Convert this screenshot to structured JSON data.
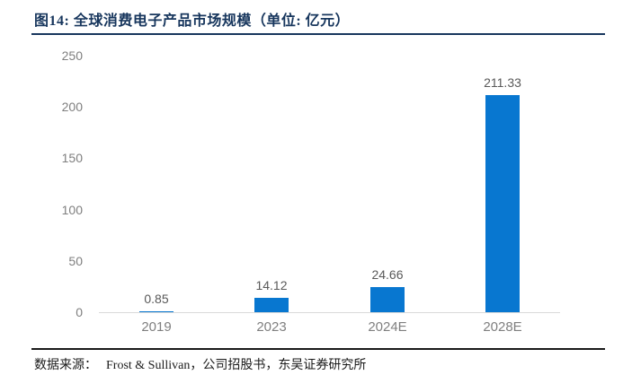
{
  "figure": {
    "title": "图14:  全球消费电子产品市场规模（单位:  亿元）"
  },
  "source": {
    "label": "数据来源：",
    "text": "Frost & Sullivan，公司招股书，东吴证券研究所"
  },
  "colors": {
    "bar": "#0877D0",
    "title_navy": "#17365D",
    "axis_line": "#D9D9D9",
    "tick_text": "#7F7F7F",
    "value_text": "#595959"
  },
  "chart_data": {
    "type": "bar",
    "title": "全球消费电子产品市场规模（单位: 亿元）",
    "categories": [
      "2019",
      "2023",
      "2024E",
      "2028E"
    ],
    "values": [
      0.85,
      14.12,
      24.66,
      211.33
    ],
    "value_labels": [
      "0.85",
      "14.12",
      "24.66",
      "211.33"
    ],
    "xlabel": "",
    "ylabel": "",
    "ylim": [
      0,
      250
    ],
    "yticks": [
      0,
      50,
      100,
      150,
      200,
      250
    ],
    "grid": false,
    "legend": false,
    "bar_color": "#0877D0"
  }
}
